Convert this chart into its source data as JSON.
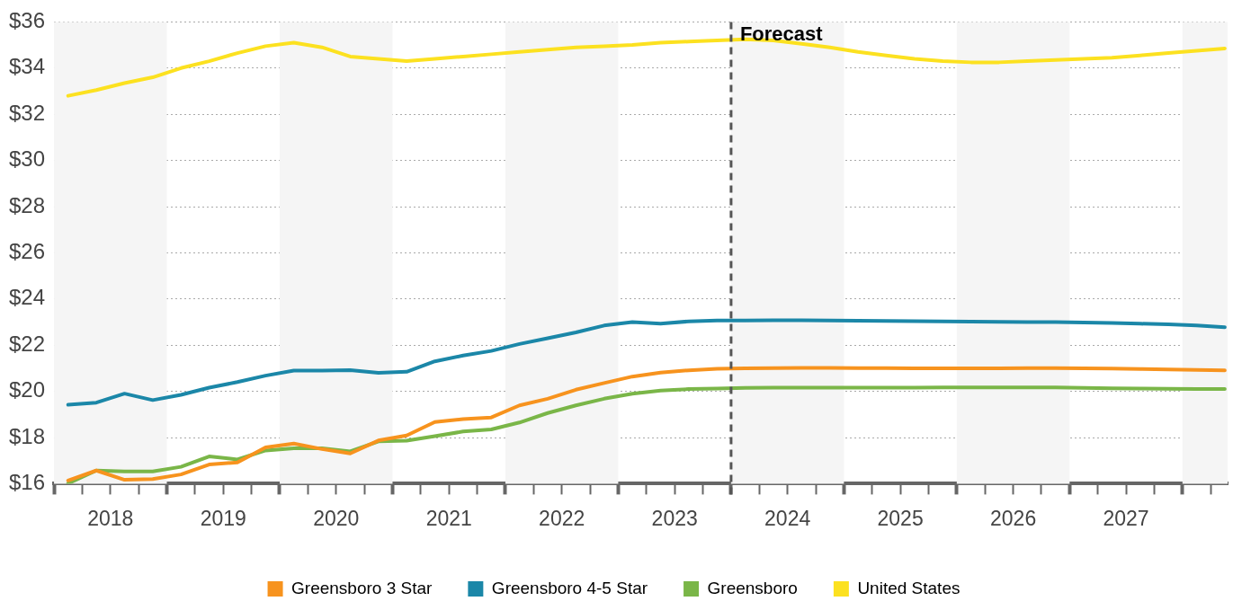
{
  "chart_data": {
    "type": "line",
    "x": [
      2018.125,
      2018.375,
      2018.625,
      2018.875,
      2019.125,
      2019.375,
      2019.625,
      2019.875,
      2020.125,
      2020.375,
      2020.625,
      2020.875,
      2021.125,
      2021.375,
      2021.625,
      2021.875,
      2022.125,
      2022.375,
      2022.625,
      2022.875,
      2023.125,
      2023.375,
      2023.625,
      2023.875,
      2024.125,
      2024.375,
      2024.625,
      2024.875,
      2025.125,
      2025.375,
      2025.625,
      2025.875,
      2026.125,
      2026.375,
      2026.625,
      2026.875,
      2027.125,
      2027.375,
      2027.625,
      2027.875,
      2028.125,
      2028.375
    ],
    "series": [
      {
        "name": "Greensboro 3 Star",
        "color": "#f7931e",
        "values": [
          16.14,
          16.57,
          16.17,
          16.2,
          16.4,
          16.83,
          16.92,
          17.57,
          17.74,
          17.5,
          17.31,
          17.87,
          18.09,
          18.67,
          18.8,
          18.87,
          19.39,
          19.68,
          20.07,
          20.36,
          20.64,
          20.81,
          20.91,
          20.98,
          21.0,
          21.01,
          21.02,
          21.02,
          21.01,
          21.01,
          21.0,
          21.0,
          21.0,
          21.0,
          21.01,
          21.01,
          21.0,
          20.99,
          20.97,
          20.95,
          20.93,
          20.91
        ]
      },
      {
        "name": "Greensboro 4-5 Star",
        "color": "#1b87a8",
        "values": [
          19.42,
          19.51,
          19.9,
          19.62,
          19.85,
          20.16,
          20.4,
          20.68,
          20.9,
          20.9,
          20.92,
          20.8,
          20.85,
          21.3,
          21.55,
          21.75,
          22.05,
          22.3,
          22.55,
          22.85,
          23.0,
          22.93,
          23.03,
          23.07,
          23.07,
          23.08,
          23.08,
          23.07,
          23.06,
          23.05,
          23.04,
          23.03,
          23.02,
          23.01,
          23.0,
          23.0,
          22.98,
          22.96,
          22.93,
          22.9,
          22.85,
          22.78
        ]
      },
      {
        "name": "Greensboro",
        "color": "#7ab648",
        "values": [
          16.01,
          16.57,
          16.53,
          16.53,
          16.73,
          17.18,
          17.05,
          17.44,
          17.53,
          17.53,
          17.4,
          17.83,
          17.86,
          18.06,
          18.26,
          18.35,
          18.65,
          19.06,
          19.39,
          19.68,
          19.9,
          20.03,
          20.1,
          20.12,
          20.15,
          20.16,
          20.16,
          20.16,
          20.16,
          20.16,
          20.16,
          20.17,
          20.17,
          20.17,
          20.17,
          20.17,
          20.15,
          20.13,
          20.12,
          20.11,
          20.1,
          20.1
        ]
      },
      {
        "name": "United States",
        "color": "#fce120",
        "values": [
          32.8,
          33.05,
          33.35,
          33.6,
          34.0,
          34.3,
          34.65,
          34.95,
          35.1,
          34.9,
          34.5,
          34.4,
          34.3,
          34.4,
          34.5,
          34.6,
          34.7,
          34.8,
          34.9,
          34.95,
          35.0,
          35.1,
          35.15,
          35.2,
          35.25,
          35.2,
          35.05,
          34.9,
          34.7,
          34.55,
          34.4,
          34.3,
          34.25,
          34.25,
          34.3,
          34.35,
          34.4,
          34.45,
          34.55,
          34.65,
          34.75,
          34.85
        ]
      }
    ],
    "xlim": [
      2018,
      2028.4
    ],
    "xticks": [
      {
        "value": 2018,
        "label": null
      },
      {
        "value": 2018.25,
        "label": null
      },
      {
        "value": 2018.5,
        "label": "2018"
      },
      {
        "value": 2018.75,
        "label": null
      },
      {
        "value": 2019,
        "label": null
      },
      {
        "value": 2019.25,
        "label": null
      },
      {
        "value": 2019.5,
        "label": "2019"
      },
      {
        "value": 2019.75,
        "label": null
      },
      {
        "value": 2020,
        "label": null
      },
      {
        "value": 2020.25,
        "label": null
      },
      {
        "value": 2020.5,
        "label": "2020"
      },
      {
        "value": 2020.75,
        "label": null
      },
      {
        "value": 2021,
        "label": null
      },
      {
        "value": 2021.25,
        "label": null
      },
      {
        "value": 2021.5,
        "label": "2021"
      },
      {
        "value": 2021.75,
        "label": null
      },
      {
        "value": 2022,
        "label": null
      },
      {
        "value": 2022.25,
        "label": null
      },
      {
        "value": 2022.5,
        "label": "2022"
      },
      {
        "value": 2022.75,
        "label": null
      },
      {
        "value": 2023,
        "label": null
      },
      {
        "value": 2023.25,
        "label": null
      },
      {
        "value": 2023.5,
        "label": "2023"
      },
      {
        "value": 2023.75,
        "label": null
      },
      {
        "value": 2024,
        "label": null
      },
      {
        "value": 2024.25,
        "label": null
      },
      {
        "value": 2024.5,
        "label": "2024"
      },
      {
        "value": 2024.75,
        "label": null
      },
      {
        "value": 2025,
        "label": null
      },
      {
        "value": 2025.25,
        "label": null
      },
      {
        "value": 2025.5,
        "label": "2025"
      },
      {
        "value": 2025.75,
        "label": null
      },
      {
        "value": 2026,
        "label": null
      },
      {
        "value": 2026.25,
        "label": null
      },
      {
        "value": 2026.5,
        "label": "2026"
      },
      {
        "value": 2026.75,
        "label": null
      },
      {
        "value": 2027,
        "label": null
      },
      {
        "value": 2027.25,
        "label": null
      },
      {
        "value": 2027.5,
        "label": "2027"
      },
      {
        "value": 2027.75,
        "label": null
      },
      {
        "value": 2028,
        "label": null
      },
      {
        "value": 2028.25,
        "label": null
      }
    ],
    "ylim": [
      16,
      36
    ],
    "yticks": [
      {
        "value": 16,
        "label": "$16"
      },
      {
        "value": 18,
        "label": "$18"
      },
      {
        "value": 20,
        "label": "$20"
      },
      {
        "value": 22,
        "label": "$22"
      },
      {
        "value": 24,
        "label": "$24"
      },
      {
        "value": 26,
        "label": "$26"
      },
      {
        "value": 28,
        "label": "$28"
      },
      {
        "value": 30,
        "label": "$30"
      },
      {
        "value": 32,
        "label": "$32"
      },
      {
        "value": 34,
        "label": "$34"
      },
      {
        "value": 36,
        "label": "$36"
      }
    ],
    "grid": "y",
    "legend": "bottom",
    "marker": "none",
    "line_style": "solid",
    "ref_lines": [
      {
        "axis": "x",
        "value": 2024,
        "label": "Forecast",
        "color": "#555555",
        "line_style": "dashed"
      }
    ],
    "bands": [
      {
        "axis": "x",
        "from": 2018,
        "to": 2019,
        "color": "#f5f5f5"
      },
      {
        "axis": "x",
        "from": 2020,
        "to": 2021,
        "color": "#f5f5f5"
      },
      {
        "axis": "x",
        "from": 2022,
        "to": 2023,
        "color": "#f5f5f5"
      },
      {
        "axis": "x",
        "from": 2024,
        "to": 2025,
        "color": "#f5f5f5"
      },
      {
        "axis": "x",
        "from": 2026,
        "to": 2027,
        "color": "#f5f5f5"
      },
      {
        "axis": "x",
        "from": 2028,
        "to": 2028.4,
        "color": "#f5f5f5"
      }
    ]
  }
}
